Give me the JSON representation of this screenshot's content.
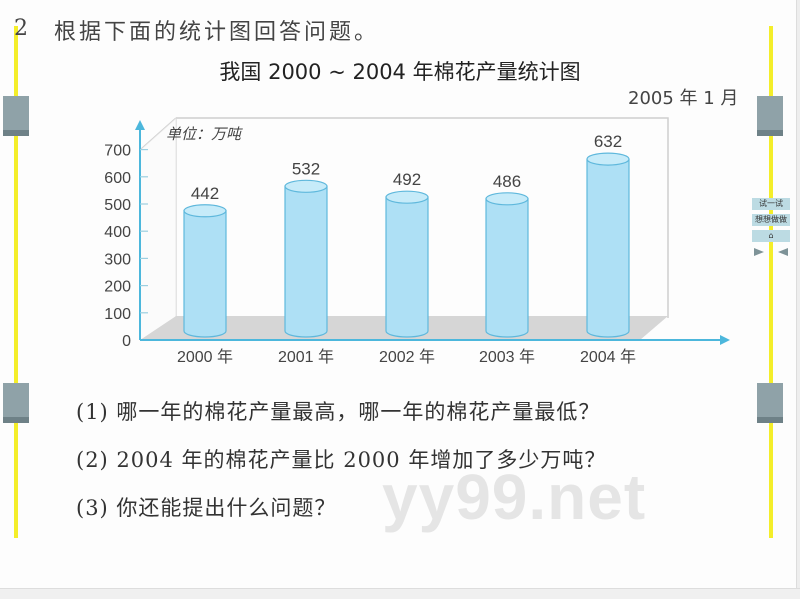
{
  "question": {
    "number": "2",
    "prompt": "根据下面的统计图回答问题。"
  },
  "chart": {
    "title": "我国 2000 ~ 2004 年棉花产量统计图",
    "date": "2005 年 1 月",
    "unit": "单位：万吨",
    "y_ticks": [
      "0",
      "100",
      "200",
      "300",
      "400",
      "500",
      "600",
      "700"
    ],
    "x_labels": [
      "2000 年",
      "2001 年",
      "2002 年",
      "2003 年",
      "2004 年"
    ],
    "value_labels": [
      "442",
      "532",
      "492",
      "486",
      "632"
    ],
    "bar_color": "#aee0f5",
    "bar_stroke": "#5fb8dc",
    "axis_color": "#4cb7dc"
  },
  "chart_data": {
    "type": "bar",
    "title": "我国 2000 ~ 2004 年棉花产量统计图",
    "subtitle": "2005 年 1 月",
    "categories": [
      "2000 年",
      "2001 年",
      "2002 年",
      "2003 年",
      "2004 年"
    ],
    "values": [
      442,
      532,
      492,
      486,
      632
    ],
    "xlabel": "",
    "ylabel": "单位：万吨",
    "ylim": [
      0,
      700
    ],
    "yticks": [
      0,
      100,
      200,
      300,
      400,
      500,
      600,
      700
    ],
    "grid": false,
    "style": "3d-cylinder"
  },
  "questions": [
    "(1) 哪一年的棉花产量最高，哪一年的棉花产量最低？",
    "(2) 2004 年的棉花产量比 2000 年增加了多少万吨？",
    "(3) 你还能提出什么问题？"
  ],
  "side_panel": {
    "buttons": [
      "试一试",
      "想想做做",
      "⌂"
    ],
    "next_label": "▶",
    "prev_label": "◀"
  },
  "watermark": "yy99.net"
}
